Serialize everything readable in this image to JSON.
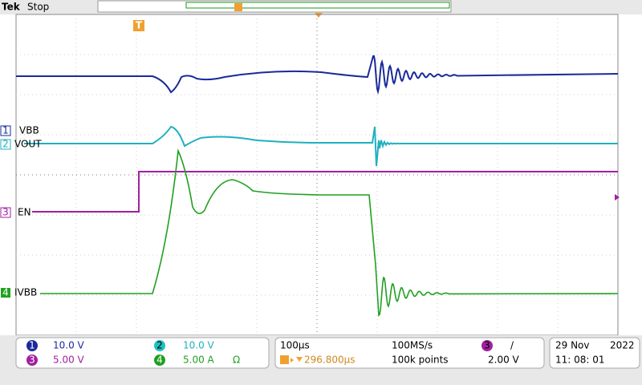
{
  "header": {
    "brand": "Tek",
    "status": "Stop",
    "trigger_marker": "T"
  },
  "channels": [
    {
      "number": "1",
      "label": "VBB",
      "scale": "10.0 V"
    },
    {
      "number": "2",
      "label": "VOUT",
      "scale": "10.0 V"
    },
    {
      "number": "3",
      "label": "EN",
      "scale": "5.00 V"
    },
    {
      "number": "4",
      "label": "IVBB",
      "scale": "5.00 A",
      "extra": "Ω"
    }
  ],
  "timebase": {
    "scale": "100µs",
    "position": "296.800µs",
    "sample_rate": "100MS/s",
    "record": "100k points"
  },
  "trigger": {
    "source": "3",
    "slope": "/",
    "level": "2.00 V"
  },
  "date": {
    "day": "29 Nov",
    "year": "2022",
    "time": "11: 08: 01"
  }
}
